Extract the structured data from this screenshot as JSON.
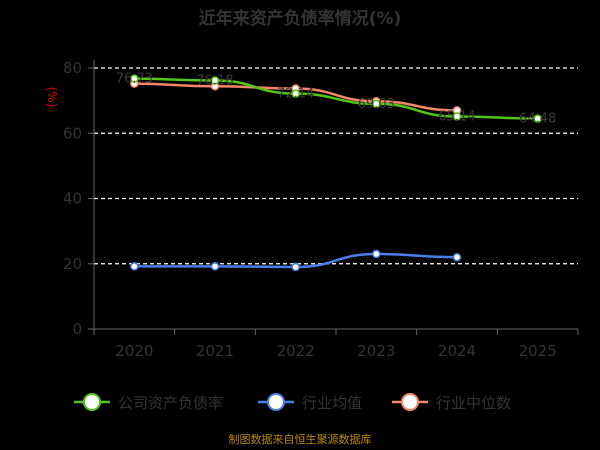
{
  "chart_data": {
    "type": "line",
    "title": "近年来资产负债率情况(%)",
    "unit_label": "(%)",
    "categories": [
      "2020",
      "2021",
      "2022",
      "2023",
      "2024",
      "2025"
    ],
    "yticks": [
      "0",
      "20",
      "40",
      "60",
      "80"
    ],
    "ylim": [
      0,
      80
    ],
    "grid": true,
    "legend_position": "bottom",
    "series": [
      {
        "name": "公司资产负债率",
        "color": "#52c41a",
        "values": [
          76.73,
          76.18,
          72.14,
          69.03,
          65.14,
          64.48
        ],
        "labels": [
          "76.73",
          "76.18",
          "72.14",
          "69.03",
          "65.14",
          "64.48"
        ]
      },
      {
        "name": "行业均值",
        "color": "#4a7ee8",
        "values": [
          19.2,
          19.2,
          19.0,
          23.0,
          22.0,
          null
        ]
      },
      {
        "name": "行业中位数",
        "color": "#f5866a",
        "values": [
          75.2,
          74.4,
          73.7,
          69.8,
          67.0,
          null
        ]
      }
    ],
    "source": "制图数据来自恒生聚源数据库"
  }
}
